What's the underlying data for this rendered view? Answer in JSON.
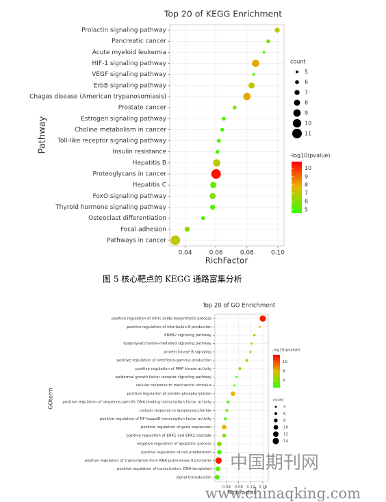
{
  "chart_data": [
    {
      "type": "scatter",
      "title": "Top 20 of KEGG Enrichment",
      "x_label": "RichFactor",
      "y_label": "Pathway",
      "categories": [
        "Prolactin signaling pathway",
        "Pancreatic cancer",
        "Acute myeloid leukemia",
        "HIF-1 signaling pathway",
        "VEGF signaling pathway",
        "ErbB signaling pathway",
        "Chagas disease (American trypanosomiasis)",
        "Prostate cancer",
        "Estrogen signaling pathway",
        "Choline metabolism in cancer",
        "Toll-like receptor signaling pathway",
        "Insulin resistance",
        "Hepatitis B",
        "Proteoglycans in cancer",
        "Hepatitis C",
        "FoxO signaling pathway",
        "Thyroid hormone signaling pathway",
        "Osteoclast differentiation",
        "Focal adhesion",
        "Pathways in cancer"
      ],
      "values": [
        0.0996,
        0.0938,
        0.091,
        0.0856,
        0.0844,
        0.083,
        0.08,
        0.072,
        0.065,
        0.064,
        0.0618,
        0.0609,
        0.0604,
        0.06,
        0.0582,
        0.0578,
        0.0578,
        0.0516,
        0.0413,
        0.0336
      ],
      "sizes": [
        7,
        6,
        5,
        9,
        5,
        8,
        9,
        6,
        6,
        6,
        6,
        6,
        9,
        11,
        8,
        8,
        7,
        6,
        7,
        11
      ],
      "color_values": [
        7,
        6,
        5,
        8,
        5,
        7,
        8,
        6,
        5,
        5,
        5,
        5,
        7,
        10.5,
        5.5,
        6,
        5,
        5,
        6,
        7
      ],
      "xlim": [
        0.03,
        0.104
      ],
      "xticks": [
        0.04,
        0.06,
        0.08,
        {
          "value": 0.1,
          "label": "0.10"
        }
      ],
      "grid": true,
      "size_legend": {
        "title": "count",
        "ticks": [
          5,
          6,
          7,
          8,
          9,
          10,
          11
        ]
      },
      "color_legend": {
        "title": "-log10(pvalue)",
        "lim": [
          4.6,
          10.8
        ],
        "ticks": [
          5,
          6,
          7,
          8,
          9,
          10
        ],
        "colors": [
          "#33ff00",
          "#e6b800",
          "#ff0000"
        ]
      }
    },
    {
      "type": "scatter",
      "title": "Top 20 of GO Enrichment",
      "x_label": "RichFactor",
      "y_label": "GOterm",
      "categories": [
        "positive regulation of nitric oxide biosynthetic process",
        "positive regulation of interleukin-8 production",
        "ERBB2 signaling pathway",
        "lipopolysaccharide-mediated signaling pathway",
        "protein kinase B signaling",
        "positive regulation of interferon-gamma production",
        "positive regulation of MAP kinase activity",
        "epidermal growth factor receptor signaling pathway",
        "cellular response to mechanical stimulus",
        "positive regulation of protein phosphorylation",
        "positive regulation of sequence-specific DNA binding transcription factor activity",
        "cellular response to lipopolysaccharide",
        "positive regulation of NF-kappaB transcription factor activity",
        "positive regulation of gene expression",
        "positive regulation of ERK1 and ERK2 cascade",
        "negative regulation of apoptotic process",
        "positive regulation of cell proliferation",
        "positive regulation of transcription from RNA polymerase II promoter",
        "positive regulation of transcription, DNA-templated",
        "signal transduction"
      ],
      "values": [
        0.16,
        0.15,
        0.132,
        0.123,
        0.119,
        0.107,
        0.084,
        0.073,
        0.066,
        0.061,
        0.045,
        0.041,
        0.036,
        0.032,
        0.032,
        0.016,
        0.016,
        0.0136,
        0.0114,
        0.009
      ],
      "sizes": [
        14,
        4,
        5,
        4,
        4,
        6,
        6,
        4,
        4,
        10,
        6,
        6,
        6,
        10,
        8,
        10,
        10,
        14,
        10,
        10
      ],
      "color_values": [
        11,
        8,
        7,
        6,
        6,
        7,
        6,
        5,
        5,
        8,
        5,
        6,
        5,
        8,
        6,
        6,
        5,
        11,
        5,
        5
      ],
      "xlim": [
        0.0014,
        0.178
      ],
      "xticks": [
        0.04,
        0.08,
        0.12,
        0.16
      ],
      "grid": true,
      "size_legend": {
        "title": "count",
        "ticks": [
          4,
          6,
          8,
          10,
          12,
          14
        ]
      },
      "color_legend": {
        "title": "-log10(pvalue)",
        "lim": [
          4.5,
          11.5
        ],
        "ticks": [
          6,
          8,
          10
        ],
        "colors": [
          "#33ff00",
          "#e6b800",
          "#ff0000"
        ]
      }
    }
  ],
  "caption": "图 5 核心靶点的 KEGG 通路富集分析",
  "watermark": {
    "title": "中国期刊网",
    "url": "www.chinaqking.com"
  }
}
